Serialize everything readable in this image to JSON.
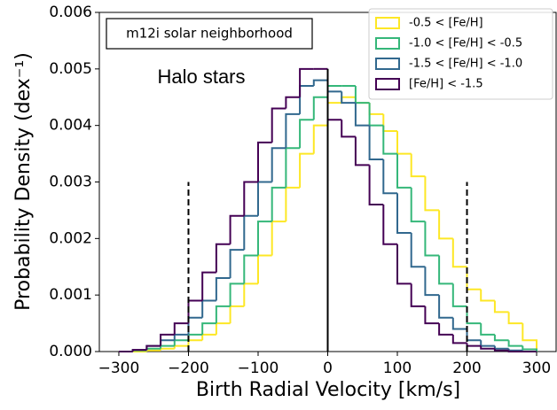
{
  "chart_data": {
    "type": "histogram",
    "xlabel": "Birth Radial Velocity [km/s]",
    "ylabel": "Probability Density (dex⁻¹)",
    "annotations": [
      "m12i solar neighborhood",
      "Halo stars"
    ],
    "xlim": [
      -328,
      328
    ],
    "ylim": [
      0,
      0.006
    ],
    "xticks": [
      {
        "value": -300,
        "label": "−300"
      },
      {
        "value": -200,
        "label": "−200"
      },
      {
        "value": -100,
        "label": "−100"
      },
      0,
      100,
      200,
      300
    ],
    "yticks": [
      {
        "value": 0,
        "label": "0.000"
      },
      {
        "value": 0.001,
        "label": "0.001"
      },
      {
        "value": 0.002,
        "label": "0.002"
      },
      {
        "value": 0.003,
        "label": "0.003"
      },
      {
        "value": 0.004,
        "label": "0.004"
      },
      {
        "value": 0.005,
        "label": "0.005"
      },
      {
        "value": 0.006,
        "label": "0.006"
      }
    ],
    "legend": "upper right",
    "bins": [
      -300,
      -280,
      -260,
      -240,
      -220,
      -200,
      -180,
      -160,
      -140,
      -120,
      -100,
      -80,
      -60,
      -40,
      -20,
      0,
      20,
      40,
      60,
      80,
      100,
      120,
      140,
      160,
      180,
      200,
      220,
      240,
      260,
      280,
      300
    ],
    "vlines": [
      {
        "x": -200,
        "ymax": 0.003,
        "style": "dashed"
      },
      {
        "x": 0,
        "ymax": 0.005,
        "style": "solid"
      },
      {
        "x": 200,
        "ymax": 0.003,
        "style": "dashed"
      }
    ],
    "series": [
      {
        "name": "-0.5 < [Fe/H]",
        "color": "#fde725",
        "values": [
          0,
          0,
          2e-05,
          5e-05,
          0.0001,
          0.0002,
          0.0003,
          0.0005,
          0.0008,
          0.0012,
          0.0017,
          0.0023,
          0.0029,
          0.0035,
          0.004,
          0.0044,
          0.0045,
          0.0044,
          0.0042,
          0.0039,
          0.0035,
          0.0031,
          0.0025,
          0.002,
          0.0015,
          0.0011,
          0.0009,
          0.0007,
          0.0005,
          0.0002
        ]
      },
      {
        "name": "-1.0 < [Fe/H] < -0.5",
        "color": "#35b779",
        "values": [
          0,
          2e-05,
          5e-05,
          0.0001,
          0.0002,
          0.0003,
          0.0005,
          0.0008,
          0.0012,
          0.0017,
          0.0023,
          0.0029,
          0.0036,
          0.0041,
          0.0045,
          0.0047,
          0.0047,
          0.0044,
          0.004,
          0.0035,
          0.0029,
          0.0023,
          0.0017,
          0.0012,
          0.0008,
          0.0005,
          0.0003,
          0.0002,
          0.0001,
          4e-05
        ]
      },
      {
        "name": "-1.5 < [Fe/H] < -1.0",
        "color": "#31688e",
        "values": [
          0,
          3e-05,
          0.0001,
          0.0002,
          0.0003,
          0.0006,
          0.0009,
          0.0013,
          0.0018,
          0.0024,
          0.003,
          0.0036,
          0.0042,
          0.0047,
          0.0048,
          0.0046,
          0.0044,
          0.004,
          0.0034,
          0.0028,
          0.0021,
          0.0015,
          0.001,
          0.0006,
          0.0004,
          0.0002,
          0.0001,
          5e-05,
          2e-05,
          0
        ]
      },
      {
        "name": "[Fe/H] < -1.5",
        "color": "#440154",
        "values": [
          0,
          3e-05,
          0.0001,
          0.0003,
          0.0005,
          0.0009,
          0.0014,
          0.0019,
          0.0024,
          0.003,
          0.0037,
          0.0043,
          0.0045,
          0.005,
          0.005,
          0.0041,
          0.0038,
          0.0033,
          0.0026,
          0.0019,
          0.0012,
          0.0008,
          0.0005,
          0.0003,
          0.00015,
          0.0001,
          5e-05,
          2e-05,
          0,
          0
        ]
      }
    ]
  }
}
